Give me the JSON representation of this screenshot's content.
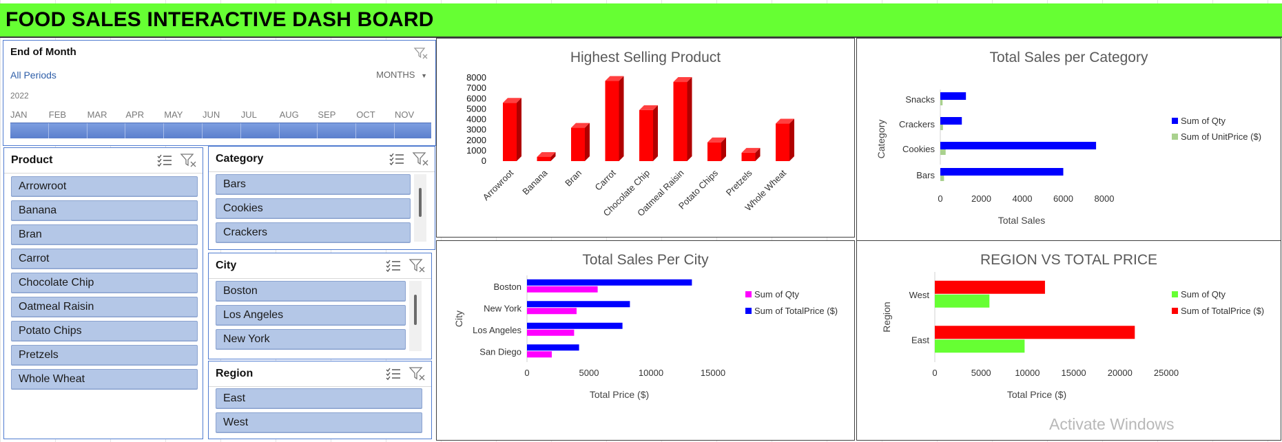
{
  "dashboard": {
    "title": "FOOD SALES INTERACTIVE DASH BOARD"
  },
  "timeline": {
    "title": "End of Month",
    "periods_label": "All Periods",
    "level_label": "MONTHS",
    "year": "2022",
    "months": [
      "JAN",
      "FEB",
      "MAR",
      "APR",
      "MAY",
      "JUN",
      "JUL",
      "AUG",
      "SEP",
      "OCT",
      "NOV"
    ]
  },
  "slicers": {
    "product": {
      "title": "Product",
      "items": [
        "Arrowroot",
        "Banana",
        "Bran",
        "Carrot",
        "Chocolate Chip",
        "Oatmeal Raisin",
        "Potato Chips",
        "Pretzels",
        "Whole Wheat"
      ]
    },
    "category": {
      "title": "Category",
      "items": [
        "Bars",
        "Cookies",
        "Crackers"
      ]
    },
    "city": {
      "title": "City",
      "items": [
        "Boston",
        "Los Angeles",
        "New York"
      ]
    },
    "region": {
      "title": "Region",
      "items": [
        "East",
        "West"
      ]
    }
  },
  "colors": {
    "title_bar": "#66ff33",
    "slicer_item": "#b4c7e7",
    "red": "#ff0000",
    "blue": "#0000ff",
    "magenta": "#ff00ff",
    "green": "#66ff33",
    "light_green": "#a9d18e"
  },
  "chart_data": [
    {
      "type": "bar",
      "title": "Highest Selling Product",
      "categories": [
        "Arrowroot",
        "Banana",
        "Bran",
        "Carrot",
        "Chocolate Chip",
        "Oatmeal Raisin",
        "Potato Chips",
        "Pretzels",
        "Whole Wheat"
      ],
      "values": [
        5600,
        400,
        3200,
        7700,
        4900,
        7600,
        1800,
        800,
        3600
      ],
      "yticks": [
        "0",
        "1000",
        "2000",
        "3000",
        "4000",
        "5000",
        "6000",
        "7000",
        "8000"
      ],
      "ylim": [
        0,
        8000
      ],
      "color": "#ff0000"
    },
    {
      "type": "bar",
      "orientation": "horizontal",
      "title": "Total Sales per Category",
      "categories": [
        "Bars",
        "Cookies",
        "Crackers",
        "Snacks"
      ],
      "series": [
        {
          "name": "Sum of Qty",
          "values": [
            6000,
            7600,
            1050,
            1250
          ],
          "color": "#0000ff"
        },
        {
          "name": "Sum of UnitPrice ($)",
          "values": [
            180,
            260,
            130,
            110
          ],
          "color": "#a9d18e"
        }
      ],
      "xticks": [
        "0",
        "2000",
        "4000",
        "6000",
        "8000"
      ],
      "xlim": [
        0,
        8000
      ],
      "xlabel": "Total Sales",
      "ylabel": "Category",
      "legend": "right"
    },
    {
      "type": "bar",
      "orientation": "horizontal",
      "title": "Total Sales Per City",
      "categories": [
        "San Diego",
        "Los Angeles",
        "New York",
        "Boston"
      ],
      "series": [
        {
          "name": "Sum of Qty",
          "values": [
            2000,
            3800,
            4000,
            5700
          ],
          "color": "#ff00ff"
        },
        {
          "name": "Sum of TotalPrice ($)",
          "values": [
            4200,
            7700,
            8300,
            13300
          ],
          "color": "#0000ff"
        }
      ],
      "xticks": [
        "0",
        "5000",
        "10000",
        "15000"
      ],
      "xlim": [
        0,
        16000
      ],
      "xlabel": "Total Price ($)",
      "ylabel": "City",
      "legend": "right"
    },
    {
      "type": "bar",
      "orientation": "horizontal",
      "title": "REGION VS TOTAL PRICE",
      "categories": [
        "East",
        "West"
      ],
      "series": [
        {
          "name": "Sum of Qty",
          "values": [
            9700,
            5900
          ],
          "color": "#66ff33"
        },
        {
          "name": "Sum of TotalPrice ($)",
          "values": [
            21600,
            11900
          ],
          "color": "#ff0000"
        }
      ],
      "xticks": [
        "0",
        "5000",
        "10000",
        "15000",
        "20000",
        "25000"
      ],
      "xlim": [
        0,
        25000
      ],
      "xlabel": "Total Price ($)",
      "ylabel": "Region",
      "legend": "right"
    }
  ],
  "watermark": "Activate Windows"
}
